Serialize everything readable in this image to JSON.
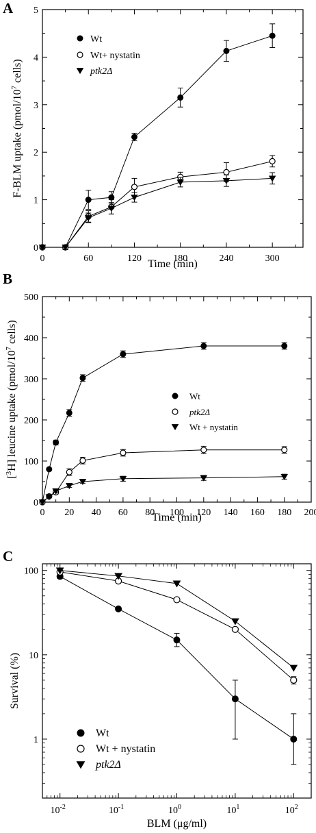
{
  "chart_data": [
    {
      "panel_label": "A",
      "type": "line",
      "xlabel": "Time (min)",
      "ylabel": "F-BLM uptake (pmol/10^7 cells)",
      "ylabel_parts": {
        "main": "F-BLM uptake (pmol/10",
        "sup": "7",
        "tail": " cells)"
      },
      "xlim": [
        0,
        340
      ],
      "ylim": [
        0,
        5
      ],
      "x_ticks": [
        0,
        60,
        120,
        180,
        240,
        300
      ],
      "y_ticks": [
        0,
        1,
        2,
        3,
        4,
        5
      ],
      "legend_position": "top-left",
      "series": [
        {
          "name": "Wt",
          "marker": "filled-circle",
          "x": [
            0,
            30,
            60,
            90,
            120,
            180,
            240,
            300
          ],
          "y": [
            0,
            0,
            1.0,
            1.05,
            2.32,
            3.15,
            4.13,
            4.45
          ],
          "err": [
            0.02,
            0.05,
            0.2,
            0.12,
            0.08,
            0.2,
            0.22,
            0.25
          ]
        },
        {
          "name": "Wt+ nystatin",
          "marker": "open-circle",
          "x": [
            0,
            30,
            60,
            90,
            120,
            180,
            240,
            300
          ],
          "y": [
            0,
            0,
            0.65,
            0.85,
            1.27,
            1.48,
            1.58,
            1.81
          ],
          "err": [
            0.02,
            0.05,
            0.12,
            0.15,
            0.18,
            0.1,
            0.2,
            0.12
          ]
        },
        {
          "name": "ptk2Δ",
          "marker": "filled-triangle-down",
          "italic": true,
          "x": [
            0,
            30,
            60,
            90,
            120,
            180,
            240,
            300
          ],
          "y": [
            0,
            0,
            0.62,
            0.82,
            1.05,
            1.37,
            1.4,
            1.45
          ],
          "err": [
            0.02,
            0.05,
            0.1,
            0.12,
            0.1,
            0.1,
            0.12,
            0.12
          ]
        }
      ]
    },
    {
      "panel_label": "B",
      "type": "line",
      "xlabel": "Time (min)",
      "ylabel": "[3H] leucine uptake (pmol/10^7 cells)",
      "ylabel_parts": {
        "pre": "[",
        "sup1": "3",
        "main": "H] leucine uptake (pmol/10",
        "sup2": "7",
        "tail": " cells)"
      },
      "xlim": [
        0,
        200
      ],
      "ylim": [
        0,
        500
      ],
      "x_ticks": [
        0,
        20,
        40,
        60,
        80,
        100,
        120,
        140,
        160,
        180,
        200
      ],
      "y_ticks": [
        0,
        100,
        200,
        300,
        400,
        500
      ],
      "legend_position": "center-right",
      "series": [
        {
          "name": "Wt",
          "marker": "filled-circle",
          "x": [
            0,
            5,
            10,
            20,
            30,
            60,
            120,
            180
          ],
          "y": [
            0,
            80,
            145,
            217,
            302,
            360,
            380,
            380
          ],
          "err": [
            0,
            3,
            6,
            8,
            8,
            8,
            8,
            8
          ]
        },
        {
          "name": "ptk2Δ",
          "marker": "open-circle",
          "italic": true,
          "x": [
            0,
            5,
            10,
            20,
            30,
            60,
            120,
            180
          ],
          "y": [
            0,
            14,
            24,
            73,
            101,
            120,
            127,
            127
          ],
          "err": [
            0,
            3,
            4,
            8,
            8,
            8,
            9,
            8
          ]
        },
        {
          "name": "Wt + nystatin",
          "marker": "filled-triangle-down",
          "x": [
            0,
            5,
            10,
            20,
            30,
            60,
            120,
            180
          ],
          "y": [
            0,
            13,
            27,
            40,
            50,
            57,
            59,
            62
          ],
          "err": [
            0,
            2,
            3,
            4,
            4,
            6,
            6,
            6
          ]
        }
      ]
    },
    {
      "panel_label": "C",
      "type": "line",
      "xlabel": "BLM (μg/ml)",
      "ylabel": "Survival (%)",
      "x_scale": "log",
      "y_scale": "log",
      "xlim": [
        0.005,
        200
      ],
      "ylim": [
        0.2,
        120
      ],
      "x_ticks": [
        0.01,
        0.1,
        1,
        10,
        100
      ],
      "x_tick_labels": [
        {
          "base": "10",
          "exp": "-2"
        },
        {
          "base": "10",
          "exp": "-1"
        },
        {
          "base": "10",
          "exp": "0"
        },
        {
          "base": "10",
          "exp": "1"
        },
        {
          "base": "10",
          "exp": "2"
        }
      ],
      "y_ticks": [
        1,
        10,
        100
      ],
      "y_tick_labels": [
        "1",
        "10",
        "100"
      ],
      "legend_position": "bottom-left",
      "series": [
        {
          "name": "Wt",
          "marker": "filled-circle",
          "x": [
            0.01,
            0.1,
            1,
            10,
            100
          ],
          "y": [
            85,
            35,
            15,
            3,
            1
          ],
          "err_low": [
            80,
            35,
            12.5,
            1,
            0.5
          ],
          "err_high": [
            90,
            35,
            18,
            5,
            2
          ]
        },
        {
          "name": "Wt + nystatin",
          "marker": "open-circle",
          "x": [
            0.01,
            0.1,
            1,
            10,
            100
          ],
          "y": [
            96,
            75,
            45,
            20,
            5
          ],
          "err_low": [
            96,
            75,
            45,
            20,
            4.5
          ],
          "err_high": [
            96,
            75,
            45,
            20,
            5.5
          ]
        },
        {
          "name": "ptk2Δ",
          "marker": "filled-triangle-down",
          "italic": true,
          "x": [
            0.01,
            0.1,
            1,
            10,
            100
          ],
          "y": [
            100,
            86,
            70,
            25,
            7
          ],
          "err_low": [
            100,
            86,
            70,
            25,
            7
          ],
          "err_high": [
            100,
            86,
            70,
            25,
            7
          ]
        }
      ]
    }
  ]
}
